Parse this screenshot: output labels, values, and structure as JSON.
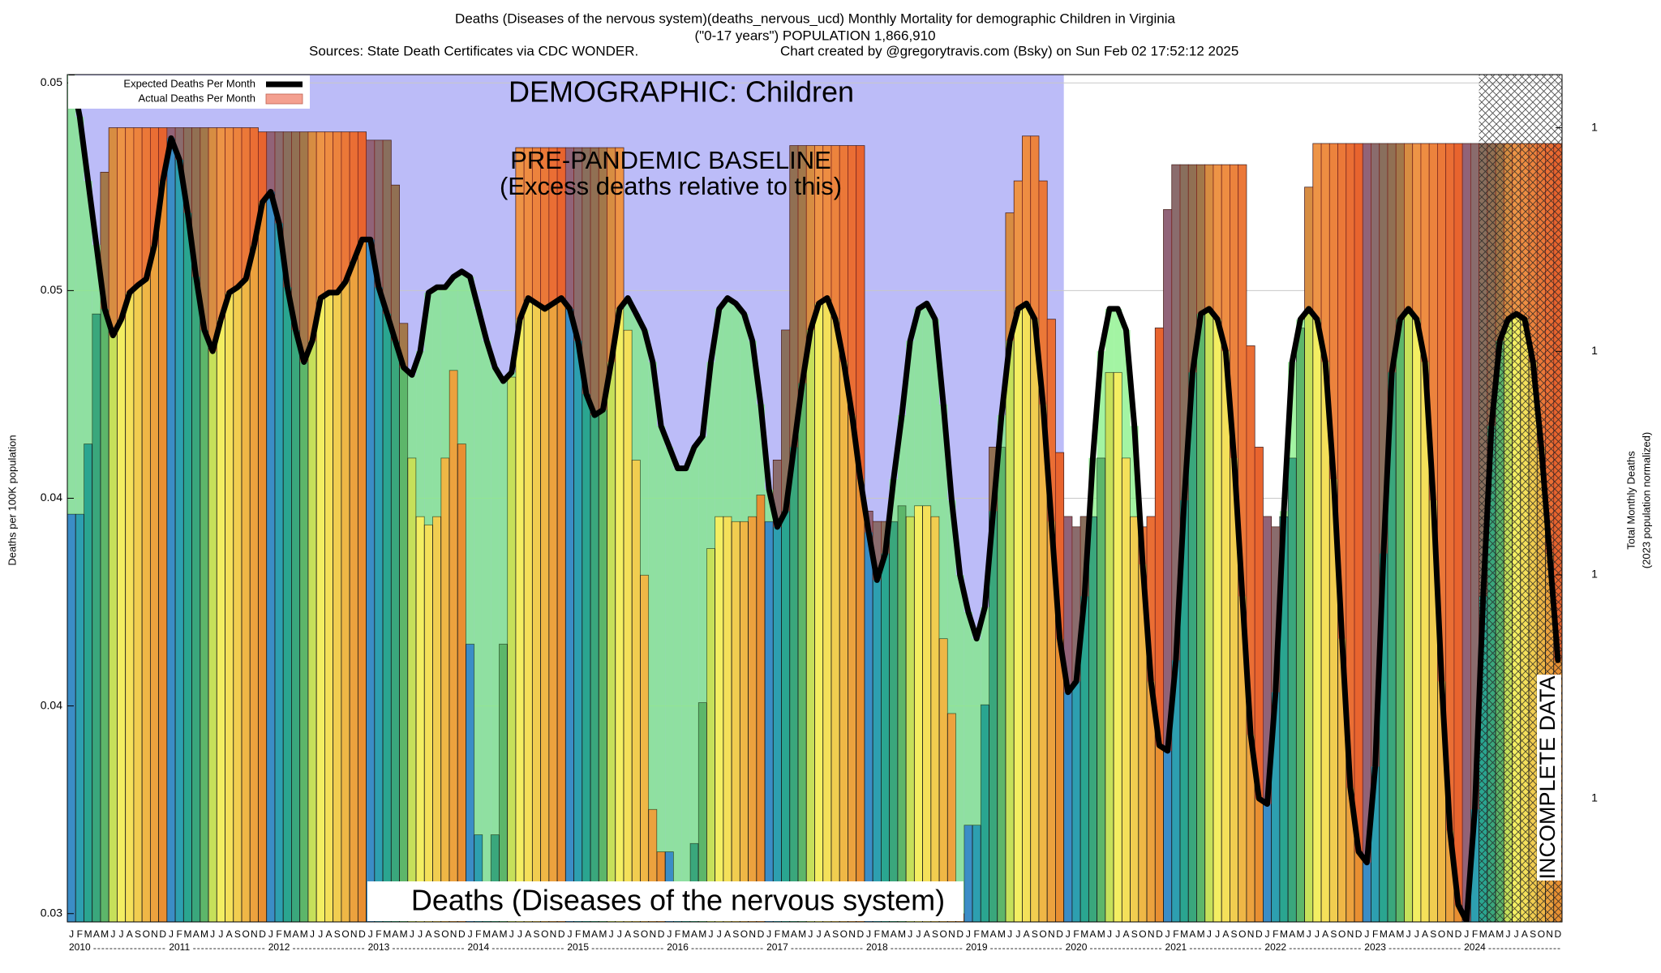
{
  "chart_data": {
    "type": "bar",
    "title": "Deaths (Diseases of the nervous system)(deaths_nervous_ucd) Monthly Mortality for demographic Children in Virginia",
    "subtitle": "(\"0-17 years\") POPULATION 1,866,910",
    "sources": "Sources: State Death Certificates via CDC WONDER.",
    "credit": "Chart created by @gregorytravis.com (Bsky) on Sun Feb 02 17:52:12 2025",
    "y_label": "Deaths per 100K population",
    "y2_label": "Total Monthly Deaths",
    "y2_label_note": "(2023 population normalized)",
    "annotations": {
      "demographic": "DEMOGRAPHIC: Children",
      "baseline": "PRE-PANDEMIC BASELINE",
      "baseline_note": "(Excess deaths relative to this)",
      "cause": "Deaths (Diseases of the nervous system)",
      "incomplete": "INCOMPLETE DATA"
    },
    "categories": [
      "J",
      "F",
      "M",
      "A",
      "M",
      "J",
      "J",
      "A",
      "S",
      "O",
      "N",
      "D",
      "J",
      "F",
      "M",
      "A",
      "M",
      "J",
      "J",
      "A",
      "S",
      "O",
      "N",
      "D",
      "J",
      "F",
      "M",
      "A",
      "M",
      "J",
      "J",
      "A",
      "S",
      "O",
      "N",
      "D",
      "J",
      "F",
      "M",
      "A",
      "M",
      "J",
      "J",
      "A",
      "S",
      "O",
      "N",
      "D",
      "J",
      "F",
      "M",
      "A",
      "M",
      "J",
      "J",
      "A",
      "S",
      "O",
      "N",
      "D",
      "J",
      "F",
      "M",
      "A",
      "M",
      "J",
      "J",
      "A",
      "S",
      "O",
      "N",
      "D",
      "J",
      "F",
      "M",
      "A",
      "M",
      "J",
      "J",
      "A",
      "S",
      "O",
      "N",
      "D",
      "J",
      "F",
      "M",
      "A",
      "M",
      "J",
      "J",
      "A",
      "S",
      "O",
      "N",
      "D",
      "J",
      "F",
      "M",
      "A",
      "M",
      "J",
      "J",
      "A",
      "S",
      "O",
      "N",
      "D",
      "J",
      "F",
      "M",
      "A",
      "M",
      "J",
      "J",
      "A",
      "S",
      "O",
      "N",
      "D",
      "J",
      "F",
      "M",
      "A",
      "M",
      "J",
      "J",
      "A",
      "S",
      "O",
      "N",
      "D",
      "J",
      "F",
      "M",
      "A",
      "M",
      "J",
      "J",
      "A",
      "S",
      "O",
      "N",
      "D",
      "J",
      "F",
      "M",
      "A",
      "M",
      "J",
      "J",
      "A",
      "S",
      "O",
      "N",
      "D",
      "J",
      "F",
      "M",
      "A",
      "M",
      "J",
      "J",
      "A",
      "S",
      "O",
      "N",
      "D",
      "J",
      "F",
      "M",
      "A",
      "M",
      "J",
      "J",
      "A",
      "S",
      "O",
      "N",
      "D"
    ],
    "year_labels": [
      "2010",
      "2011",
      "2012",
      "2013",
      "2014",
      "2015",
      "2016",
      "2017",
      "2018",
      "2019",
      "2020",
      "2021",
      "2022",
      "2023",
      "2024"
    ],
    "series": [
      {
        "name": "Actual Deaths Per Month",
        "color": "#f4a090",
        "values": [
          0.03962,
          0.03962,
          0.04131,
          0.04444,
          0.04785,
          0.04892,
          0.04892,
          0.04892,
          0.04892,
          0.04892,
          0.04892,
          0.04892,
          0.04892,
          0.04892,
          0.04892,
          0.04892,
          0.04892,
          0.04892,
          0.04892,
          0.04892,
          0.04892,
          0.04892,
          0.04892,
          0.04882,
          0.04882,
          0.04882,
          0.04882,
          0.04882,
          0.04882,
          0.04882,
          0.04882,
          0.04882,
          0.04882,
          0.04882,
          0.04882,
          0.04882,
          0.04862,
          0.04862,
          0.04862,
          0.04754,
          0.04421,
          0.04097,
          0.03956,
          0.03936,
          0.03956,
          0.04097,
          0.04308,
          0.04131,
          0.03649,
          0.0319,
          0.03,
          0.0319,
          0.03649,
          0.04292,
          0.04844,
          0.04844,
          0.04844,
          0.04844,
          0.04844,
          0.04844,
          0.04844,
          0.04844,
          0.04844,
          0.04844,
          0.04844,
          0.04844,
          0.04844,
          0.04405,
          0.04092,
          0.03815,
          0.03251,
          0.03149,
          0.03149,
          0.03,
          0.03,
          0.03169,
          0.03508,
          0.03879,
          0.03956,
          0.03956,
          0.03944,
          0.03944,
          0.03956,
          0.04008,
          0.03944,
          0.04092,
          0.04405,
          0.04849,
          0.04849,
          0.04849,
          0.04849,
          0.04849,
          0.04849,
          0.04849,
          0.04849,
          0.04849,
          0.03969,
          0.03944,
          0.03944,
          0.03944,
          0.03982,
          0.03956,
          0.03982,
          0.03982,
          0.03956,
          0.03662,
          0.03482,
          0.03,
          0.03213,
          0.03213,
          0.03503,
          0.04123,
          0.04123,
          0.04687,
          0.04764,
          0.04872,
          0.04872,
          0.04764,
          0.04431,
          0.0411,
          0.03956,
          0.03931,
          0.03956,
          0.03956,
          0.04097,
          0.04303,
          0.04303,
          0.04097,
          0.03956,
          0.03931,
          0.03956,
          0.0441,
          0.04695,
          0.04803,
          0.04803,
          0.04803,
          0.04803,
          0.04803,
          0.04803,
          0.04803,
          0.04803,
          0.04803,
          0.04367,
          0.04123,
          0.03956,
          0.03931,
          0.03956,
          0.04097,
          0.0441,
          0.04749,
          0.04854,
          0.04854,
          0.04854,
          0.04854,
          0.04854,
          0.04854,
          0.04854,
          0.04854,
          0.04854,
          0.04854,
          0.04854,
          0.04854,
          0.04854,
          0.04854,
          0.04854,
          0.04854,
          0.04854,
          0.04854,
          0.04854,
          0.04854,
          0.04854,
          0.04854,
          0.04854,
          0.04854,
          0.04854,
          0.04854,
          0.04854,
          0.04854,
          0.04854,
          0.04854
        ]
      },
      {
        "name": "Expected Deaths Per Month",
        "color": "#000000",
        "values": [
          0.05021,
          0.04918,
          0.04764,
          0.0461,
          0.04456,
          0.04392,
          0.04431,
          0.04495,
          0.04513,
          0.04528,
          0.0461,
          0.04764,
          0.04867,
          0.04815,
          0.04687,
          0.04533,
          0.04405,
          0.04354,
          0.04431,
          0.04495,
          0.04508,
          0.04528,
          0.0461,
          0.04713,
          0.04738,
          0.04662,
          0.04508,
          0.04405,
          0.04328,
          0.04379,
          0.04482,
          0.04495,
          0.04495,
          0.04521,
          0.04572,
          0.04623,
          0.04623,
          0.04508,
          0.04444,
          0.04379,
          0.04315,
          0.04297,
          0.04354,
          0.04495,
          0.04508,
          0.04508,
          0.04533,
          0.04546,
          0.04533,
          0.04456,
          0.04379,
          0.04315,
          0.04282,
          0.04303,
          0.04431,
          0.04482,
          0.04469,
          0.04456,
          0.04469,
          0.04482,
          0.04456,
          0.04379,
          0.04251,
          0.042,
          0.04213,
          0.04328,
          0.04456,
          0.04482,
          0.04444,
          0.04405,
          0.04328,
          0.04174,
          0.04123,
          0.04072,
          0.04072,
          0.04123,
          0.04149,
          0.04328,
          0.04456,
          0.04482,
          0.04469,
          0.04444,
          0.04379,
          0.04226,
          0.04021,
          0.03931,
          0.03969,
          0.04123,
          0.04277,
          0.04405,
          0.04469,
          0.04482,
          0.04431,
          0.04328,
          0.042,
          0.04046,
          0.03918,
          0.03803,
          0.03867,
          0.04046,
          0.042,
          0.04379,
          0.04456,
          0.04469,
          0.04431,
          0.04226,
          0.03995,
          0.03815,
          0.03726,
          0.03662,
          0.03738,
          0.03969,
          0.042,
          0.04379,
          0.04456,
          0.04469,
          0.04431,
          0.04226,
          0.03944,
          0.03662,
          0.03533,
          0.03559,
          0.03764,
          0.04097,
          0.04354,
          0.04456,
          0.04456,
          0.04405,
          0.04174,
          0.03841,
          0.03559,
          0.03405,
          0.03392,
          0.0361,
          0.03995,
          0.04303,
          0.04444,
          0.04456,
          0.04431,
          0.04354,
          0.04097,
          0.03764,
          0.03431,
          0.03277,
          0.03264,
          0.03533,
          0.03969,
          0.04328,
          0.04431,
          0.04456,
          0.04431,
          0.04328,
          0.04046,
          0.03662,
          0.03303,
          0.03149,
          0.03123,
          0.03354,
          0.03867,
          0.04303,
          0.04431,
          0.04456,
          0.04431,
          0.04328,
          0.03995,
          0.03559,
          0.032,
          0.03021,
          0.02982,
          0.03251,
          0.03764,
          0.04174,
          0.04379,
          0.04431,
          0.04444,
          0.04431,
          0.04328,
          0.04123,
          0.03867,
          0.0361
        ]
      }
    ],
    "month_colors": [
      "#3b8dc6",
      "#2d9fb0",
      "#2aa590",
      "#3aa77c",
      "#5db66a",
      "#c6e05a",
      "#f3ee62",
      "#f4e05a",
      "#f1cd50",
      "#efb746",
      "#eca23e",
      "#e88f32"
    ],
    "excess_color": "#e83a2a",
    "deficit_color": "#7cf07c",
    "ylim": [
      0.0298,
      0.0502
    ],
    "yticks": [
      0.03,
      {
        "value": 0.035,
        "label": "0.04"
      },
      0.04,
      {
        "value": 0.045,
        "label": "0.05"
      },
      0.05
    ],
    "y2lim": [
      0.5563,
      0.9372
    ],
    "y2ticks": [
      {
        "value": 0.6118,
        "label": "1"
      },
      {
        "value": 0.7123,
        "label": "1"
      },
      {
        "value": 0.8128,
        "label": "1"
      },
      {
        "value": 0.9133,
        "label": "1"
      }
    ],
    "grid": true,
    "legend": "upper left"
  }
}
